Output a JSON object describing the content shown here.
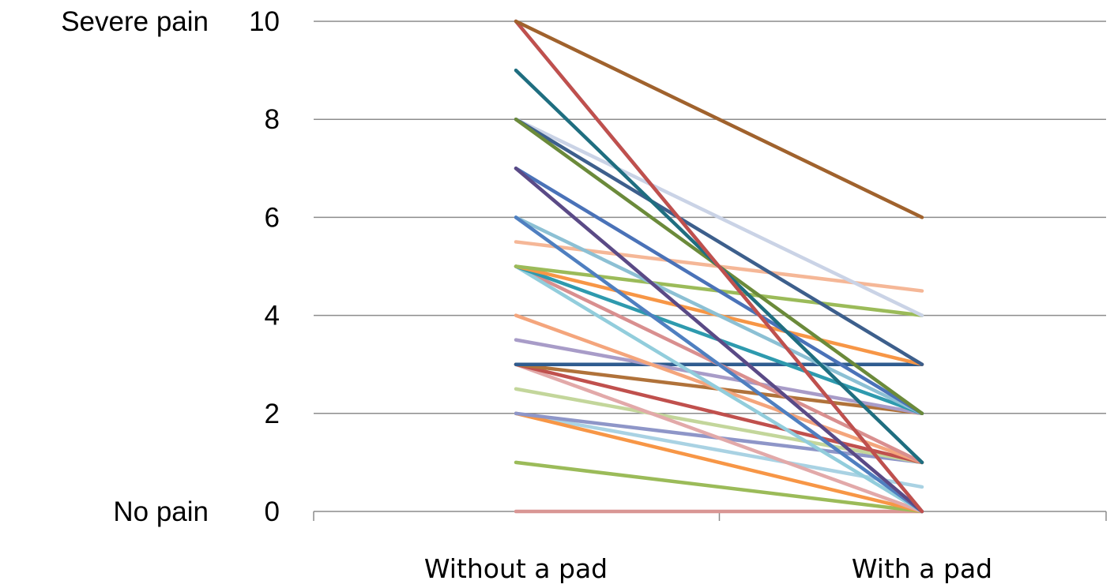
{
  "chart_data": {
    "type": "line",
    "title": "",
    "xlabel": "",
    "ylabel": "",
    "categories": [
      "Without a pad",
      "With a pad"
    ],
    "ylim": [
      0,
      10
    ],
    "yticks": [
      0,
      2,
      4,
      6,
      8,
      10
    ],
    "y_annotations": [
      {
        "text": "Severe pain",
        "at": 10
      },
      {
        "text": "No pain",
        "at": 0
      }
    ],
    "grid": true,
    "legend": "none",
    "series": [
      {
        "values": [
          10,
          6
        ],
        "color": "#A0622D"
      },
      {
        "values": [
          10,
          0
        ],
        "color": "#C0504D"
      },
      {
        "values": [
          10,
          0
        ],
        "color": "#7F96C8"
      },
      {
        "values": [
          9,
          1
        ],
        "color": "#1F6E80"
      },
      {
        "values": [
          8,
          2
        ],
        "color": "#6B8A3A"
      },
      {
        "values": [
          8,
          3
        ],
        "color": "#3D5F8C"
      },
      {
        "values": [
          8,
          4
        ],
        "color": "#CAD3E6"
      },
      {
        "values": [
          7,
          0
        ],
        "color": "#5A4A86"
      },
      {
        "values": [
          7,
          2
        ],
        "color": "#4A72B8"
      },
      {
        "values": [
          7,
          0
        ],
        "color": "#C2B4D6"
      },
      {
        "values": [
          6,
          0
        ],
        "color": "#4F7FC0"
      },
      {
        "values": [
          6,
          2
        ],
        "color": "#8CC0D4"
      },
      {
        "values": [
          5.5,
          4.5
        ],
        "color": "#F5B797"
      },
      {
        "values": [
          5,
          4
        ],
        "color": "#9BBB59"
      },
      {
        "values": [
          5,
          3
        ],
        "color": "#F79646"
      },
      {
        "values": [
          5,
          2
        ],
        "color": "#2E9AAE"
      },
      {
        "values": [
          5,
          0
        ],
        "color": "#92CDDC"
      },
      {
        "values": [
          5,
          1
        ],
        "color": "#D98F8F"
      },
      {
        "values": [
          4,
          1
        ],
        "color": "#F4A57C"
      },
      {
        "values": [
          3.5,
          2
        ],
        "color": "#A89CC8"
      },
      {
        "values": [
          3,
          3
        ],
        "color": "#2F5C8F"
      },
      {
        "values": [
          3,
          2
        ],
        "color": "#B0723A"
      },
      {
        "values": [
          3,
          1
        ],
        "color": "#C0504D"
      },
      {
        "values": [
          3,
          0
        ],
        "color": "#E2A9A9"
      },
      {
        "values": [
          2.5,
          1
        ],
        "color": "#C3D69B"
      },
      {
        "values": [
          2,
          1
        ],
        "color": "#8E96C8"
      },
      {
        "values": [
          2,
          0
        ],
        "color": "#F79646"
      },
      {
        "values": [
          2,
          0.5
        ],
        "color": "#A9D2E3"
      },
      {
        "values": [
          1,
          0
        ],
        "color": "#9BBB59"
      },
      {
        "values": [
          0,
          0
        ],
        "color": "#D99694"
      }
    ]
  }
}
